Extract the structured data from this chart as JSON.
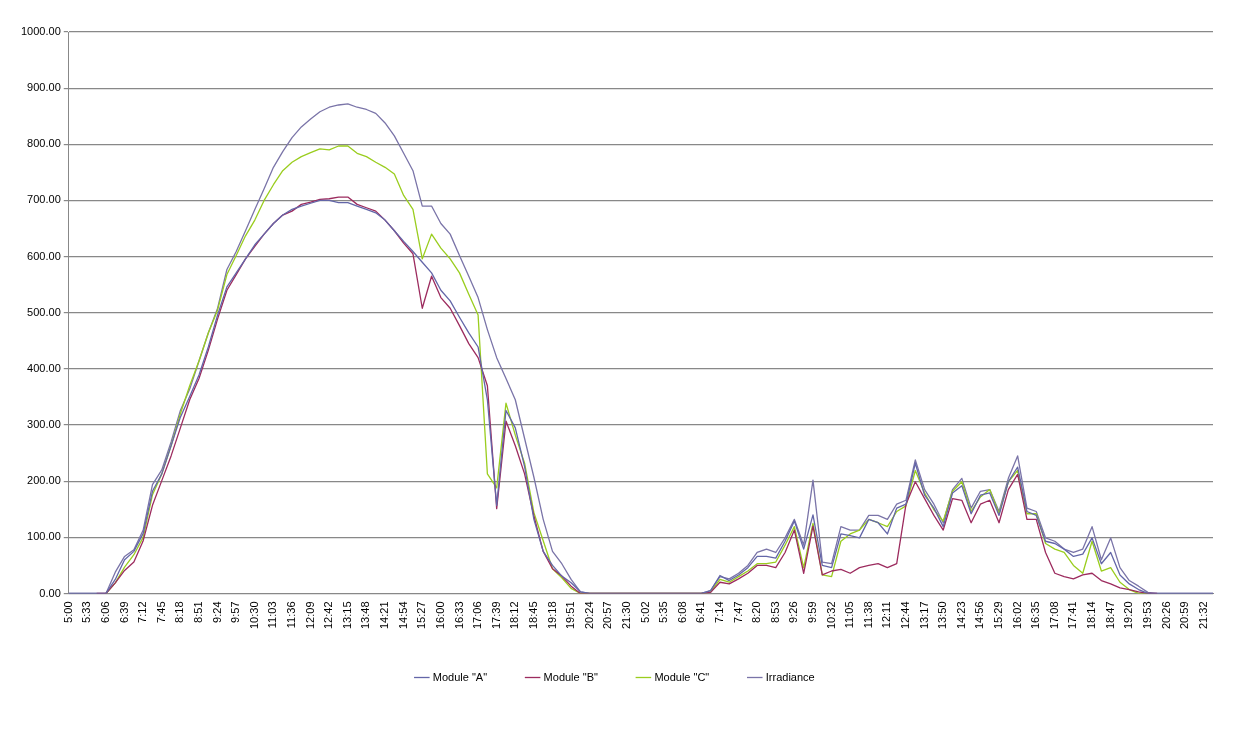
{
  "chart_data": {
    "type": "line",
    "categories": [
      "5:00",
      null,
      "5:33",
      null,
      "6:06",
      null,
      "6:39",
      null,
      "7:12",
      null,
      "7:45",
      null,
      "8:18",
      null,
      "8:51",
      null,
      "9:24",
      null,
      "9:57",
      null,
      "10:30",
      null,
      "11:03",
      null,
      "11:36",
      null,
      "12:09",
      null,
      "12:42",
      null,
      "13:15",
      null,
      "13:48",
      null,
      "14:21",
      null,
      "14:54",
      null,
      "15:27",
      null,
      "16:00",
      null,
      "16:33",
      null,
      "17:06",
      null,
      "17:39",
      null,
      "18:12",
      null,
      "18:45",
      null,
      "19:18",
      null,
      "19:51",
      null,
      "20:24",
      null,
      "20:57",
      null,
      "21:30",
      null,
      "5:02",
      null,
      "5:35",
      null,
      "6:08",
      null,
      "6:41",
      null,
      "7:14",
      null,
      "7:47",
      null,
      "8:20",
      null,
      "8:53",
      null,
      "9:26",
      null,
      "9:59",
      null,
      "10:32",
      null,
      "11:05",
      null,
      "11:38",
      null,
      "12:11",
      null,
      "12:44",
      null,
      "13:17",
      null,
      "13:50",
      null,
      "14:23",
      null,
      "14:56",
      null,
      "15:29",
      null,
      "16:02",
      null,
      "16:35",
      null,
      "17:08",
      null,
      "17:41",
      null,
      "18:14",
      null,
      "18:47",
      null,
      "19:20",
      null,
      "19:53",
      null,
      "20:26",
      null,
      "20:59",
      null,
      "21:32",
      null
    ],
    "series": [
      {
        "name": "Module \"A\"",
        "color": "#6366a8",
        "values": [
          0,
          0,
          0,
          0,
          0,
          25,
          60,
          75,
          107,
          182,
          213,
          263,
          314,
          351,
          389,
          439,
          496,
          546,
          571,
          596,
          621,
          640,
          659,
          674,
          684,
          690,
          695,
          700,
          700,
          696,
          696,
          690,
          684,
          678,
          665,
          646,
          627,
          609,
          590,
          571,
          540,
          521,
          492,
          464,
          439,
          345,
          157,
          326,
          295,
          226,
          132,
          75,
          50,
          31,
          19,
          3,
          0,
          0,
          0,
          0,
          0,
          0,
          0,
          0,
          0,
          0,
          0,
          0,
          0,
          5,
          32,
          23,
          33,
          46,
          66,
          66,
          63,
          93,
          129,
          79,
          140,
          50,
          46,
          106,
          103,
          99,
          132,
          126,
          106,
          152,
          159,
          232,
          175,
          152,
          119,
          179,
          192,
          142,
          175,
          179,
          139,
          199,
          225,
          146,
          139,
          93,
          89,
          79,
          66,
          70,
          99,
          53,
          73,
          33,
          17,
          7,
          0,
          0,
          0,
          0,
          0,
          0,
          0,
          0
        ]
      },
      {
        "name": "Module \"B\"",
        "color": "#9c2b5e",
        "values": [
          null,
          null,
          null,
          0,
          0,
          19,
          41,
          56,
          94,
          157,
          201,
          245,
          295,
          345,
          383,
          433,
          489,
          540,
          568,
          596,
          618,
          640,
          659,
          674,
          681,
          693,
          697,
          702,
          703,
          706,
          706,
          693,
          687,
          681,
          665,
          646,
          624,
          605,
          508,
          565,
          527,
          508,
          477,
          445,
          420,
          370,
          151,
          307,
          263,
          213,
          138,
          75,
          44,
          31,
          13,
          0,
          0,
          0,
          0,
          0,
          0,
          0,
          0,
          0,
          0,
          0,
          0,
          0,
          0,
          2,
          20,
          17,
          26,
          36,
          50,
          50,
          46,
          73,
          113,
          36,
          120,
          33,
          40,
          43,
          36,
          46,
          50,
          53,
          46,
          53,
          159,
          199,
          169,
          139,
          113,
          169,
          166,
          126,
          159,
          166,
          126,
          185,
          212,
          132,
          132,
          73,
          36,
          30,
          26,
          33,
          36,
          23,
          17,
          10,
          7,
          3,
          0,
          0,
          null,
          null,
          null,
          null,
          null,
          null
        ]
      },
      {
        "name": "Module \"C\"",
        "color": "#9acd1e",
        "values": [
          null,
          null,
          null,
          null,
          0,
          19,
          47,
          69,
          100,
          176,
          213,
          263,
          320,
          370,
          414,
          464,
          505,
          568,
          602,
          637,
          665,
          700,
          728,
          753,
          768,
          778,
          785,
          792,
          790,
          797,
          797,
          784,
          778,
          768,
          759,
          747,
          709,
          684,
          596,
          640,
          615,
          596,
          571,
          533,
          496,
          213,
          188,
          339,
          282,
          232,
          144,
          94,
          44,
          28,
          9,
          0,
          0,
          0,
          0,
          0,
          0,
          0,
          0,
          0,
          0,
          0,
          0,
          0,
          0,
          3,
          25,
          20,
          30,
          40,
          53,
          53,
          56,
          86,
          119,
          46,
          125,
          33,
          30,
          93,
          106,
          113,
          132,
          126,
          119,
          146,
          156,
          219,
          179,
          149,
          129,
          182,
          199,
          146,
          172,
          185,
          142,
          199,
          219,
          142,
          142,
          89,
          79,
          73,
          50,
          36,
          93,
          40,
          46,
          20,
          7,
          0,
          0,
          null,
          null,
          null,
          null,
          null,
          null,
          null
        ]
      },
      {
        "name": "Irradiance",
        "color": "#7a74a8",
        "values": [
          0,
          0,
          0,
          0,
          0,
          38,
          66,
          78,
          113,
          194,
          220,
          270,
          326,
          364,
          414,
          464,
          508,
          577,
          609,
          646,
          684,
          721,
          759,
          787,
          812,
          831,
          845,
          858,
          866,
          870,
          872,
          866,
          862,
          855,
          838,
          815,
          784,
          753,
          690,
          690,
          659,
          640,
          602,
          565,
          527,
          470,
          420,
          383,
          345,
          276,
          207,
          132,
          75,
          53,
          25,
          3,
          0,
          0,
          0,
          0,
          0,
          0,
          0,
          0,
          0,
          0,
          0,
          0,
          0,
          5,
          30,
          26,
          36,
          50,
          73,
          79,
          73,
          99,
          132,
          86,
          202,
          56,
          53,
          119,
          113,
          113,
          139,
          139,
          132,
          159,
          166,
          238,
          185,
          159,
          126,
          185,
          205,
          152,
          182,
          185,
          146,
          205,
          245,
          152,
          146,
          99,
          93,
          79,
          73,
          79,
          119,
          60,
          99,
          46,
          23,
          13,
          2,
          0,
          0,
          0,
          0,
          0,
          0,
          0
        ]
      }
    ],
    "ylim": [
      0,
      1000
    ],
    "yticks": [
      {
        "value": 0,
        "label": "0.00"
      },
      {
        "value": 100,
        "label": "100.00"
      },
      {
        "value": 200,
        "label": "200.00"
      },
      {
        "value": 300,
        "label": "300.00"
      },
      {
        "value": 400,
        "label": "400.00"
      },
      {
        "value": 500,
        "label": "500.00"
      },
      {
        "value": 600,
        "label": "600.00"
      },
      {
        "value": 700,
        "label": "700.00"
      },
      {
        "value": 800,
        "label": "800.00"
      },
      {
        "value": 900,
        "label": "900.00"
      },
      {
        "value": 1000,
        "label": "1000.00"
      }
    ],
    "grid": "y",
    "legend": "bottom",
    "marker": "none",
    "line_style": "solid"
  }
}
